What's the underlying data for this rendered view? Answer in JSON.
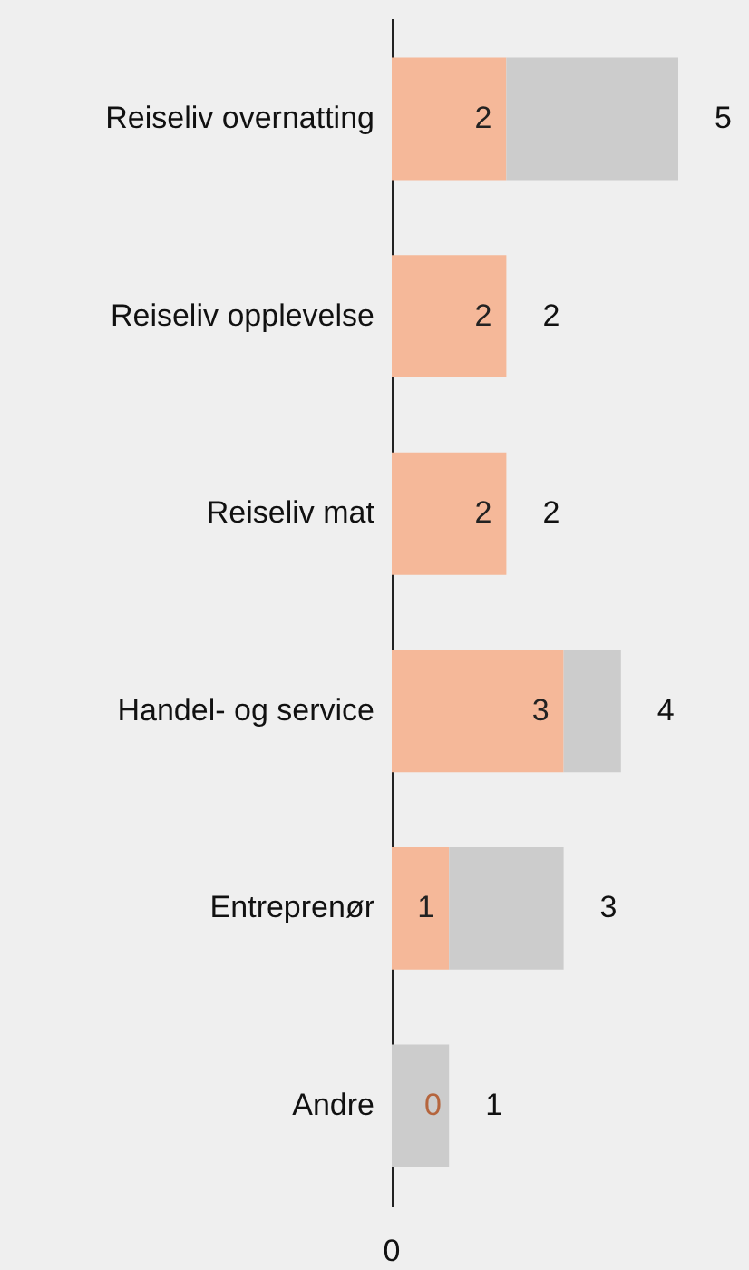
{
  "chart_data": {
    "type": "bar",
    "orientation": "horizontal",
    "stacked": true,
    "categories": [
      "Reiseliv overnatting",
      "Reiseliv opplevelse",
      "Reiseliv mat",
      "Handel- og service",
      "Entreprenør",
      "Andre"
    ],
    "series": [
      {
        "color": "#f5b899",
        "values": [
          2,
          2,
          2,
          3,
          1,
          0
        ],
        "value_labels": [
          "2",
          "2",
          "2",
          "3",
          "1",
          "0"
        ]
      },
      {
        "color": "#cccccc",
        "values": [
          3,
          0,
          0,
          1,
          2,
          1
        ]
      }
    ],
    "totals": [
      "5",
      "2",
      "2",
      "4",
      "3",
      "1"
    ],
    "annotations": [
      "0"
    ]
  }
}
